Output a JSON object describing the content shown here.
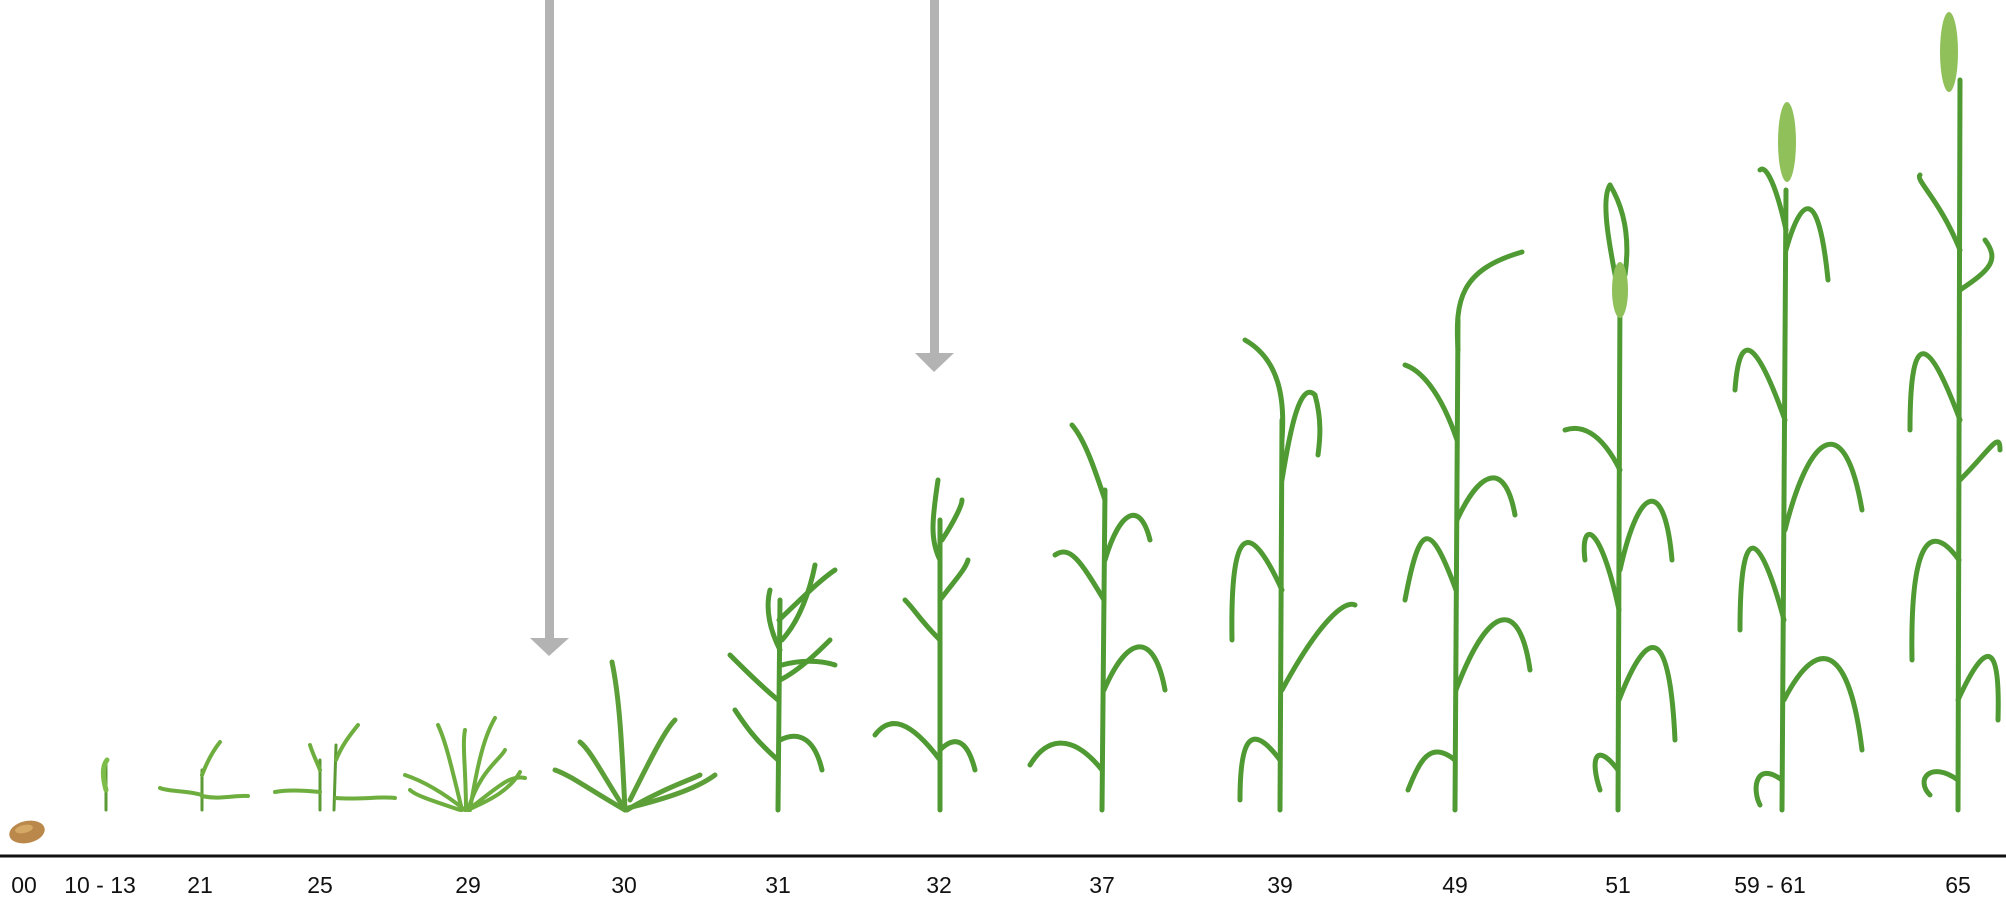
{
  "stages": [
    {
      "label": "00",
      "height": 0.0
    },
    {
      "label": "10 - 13",
      "height": 0.06
    },
    {
      "label": "21",
      "height": 0.07
    },
    {
      "label": "25",
      "height": 0.09
    },
    {
      "label": "29",
      "height": 0.1
    },
    {
      "label": "30",
      "height": 0.15
    },
    {
      "label": "31",
      "height": 0.25
    },
    {
      "label": "32",
      "height": 0.33
    },
    {
      "label": "37",
      "height": 0.4
    },
    {
      "label": "39",
      "height": 0.49
    },
    {
      "label": "49",
      "height": 0.58
    },
    {
      "label": "51",
      "height": 0.65
    },
    {
      "label": "59 - 61",
      "height": 0.72
    },
    {
      "label": "65",
      "height": 0.8
    }
  ],
  "arrows": [
    {
      "between": [
        "29",
        "30"
      ],
      "points_to": "30"
    },
    {
      "between": [
        "31",
        "32"
      ],
      "points_to": "32"
    }
  ],
  "colors": {
    "leaf": "#6dae3f",
    "leaf_dark": "#3f8a2c",
    "leaf_light": "#a9cf6e",
    "stem": "#5b9a34",
    "seed": "#b9884a",
    "arrow": "#b3b3b3",
    "baseline": "#111111"
  }
}
